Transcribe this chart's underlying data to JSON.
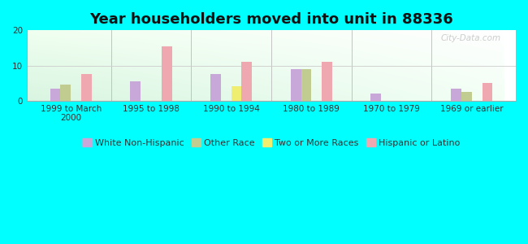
{
  "title": "Year householders moved into unit in 88336",
  "categories": [
    "1999 to March\n2000",
    "1995 to 1998",
    "1990 to 1994",
    "1980 to 1989",
    "1970 to 1979",
    "1969 or earlier"
  ],
  "series": {
    "White Non-Hispanic": [
      3.5,
      5.5,
      7.5,
      9.0,
      2.0,
      3.5
    ],
    "Other Race": [
      4.5,
      0.0,
      0.0,
      9.0,
      0.0,
      2.5
    ],
    "Two or More Races": [
      0.0,
      0.0,
      4.0,
      0.0,
      0.0,
      0.0
    ],
    "Hispanic or Latino": [
      7.5,
      15.5,
      11.0,
      11.0,
      0.0,
      5.0
    ]
  },
  "colors": {
    "White Non-Hispanic": "#c8a8d8",
    "Other Race": "#c0cc90",
    "Two or More Races": "#f0ee70",
    "Hispanic or Latino": "#f0a8b0"
  },
  "ylim": [
    0,
    20
  ],
  "yticks": [
    0,
    10,
    20
  ],
  "background_color": "#00FFFF",
  "bar_width": 0.13,
  "title_fontsize": 13,
  "legend_fontsize": 8,
  "tick_fontsize": 7.5
}
